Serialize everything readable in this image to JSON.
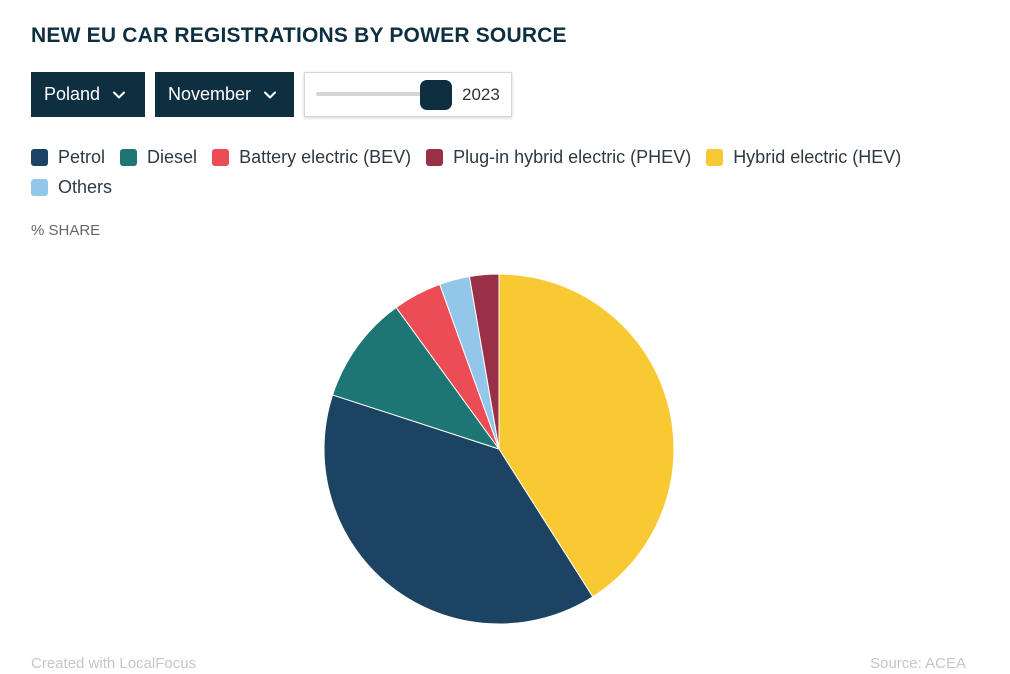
{
  "header": {
    "title": "NEW EU CAR REGISTRATIONS BY POWER SOURCE"
  },
  "controls": {
    "country": "Poland",
    "month": "November",
    "year": "2023",
    "dropdown_icon": "chevron-down-icon"
  },
  "legend": {
    "items": [
      {
        "label": "Petrol",
        "color": "#1c4462"
      },
      {
        "label": "Diesel",
        "color": "#1d7674"
      },
      {
        "label": "Battery electric (BEV)",
        "color": "#ec4c56"
      },
      {
        "label": "Plug-in hybrid electric (PHEV)",
        "color": "#9a2f48"
      },
      {
        "label": "Hybrid electric (HEV)",
        "color": "#f9c933"
      },
      {
        "label": "Others",
        "color": "#93c7ea"
      }
    ]
  },
  "chart_data": {
    "type": "pie",
    "ylabel": "% SHARE",
    "slices": [
      {
        "name": "Hybrid electric (HEV)",
        "value": 41.0,
        "color": "#f9c933"
      },
      {
        "name": "Petrol",
        "value": 39.0,
        "color": "#1c4462"
      },
      {
        "name": "Diesel",
        "value": 10.0,
        "color": "#1d7674"
      },
      {
        "name": "Battery electric (BEV)",
        "value": 4.5,
        "color": "#ec4c56"
      },
      {
        "name": "Others",
        "value": 2.8,
        "color": "#93c7ea"
      },
      {
        "name": "Plug-in hybrid electric (PHEV)",
        "value": 2.7,
        "color": "#9a2f48"
      }
    ]
  },
  "footer": {
    "credit": "Created with LocalFocus",
    "source": "Source:  ACEA"
  }
}
